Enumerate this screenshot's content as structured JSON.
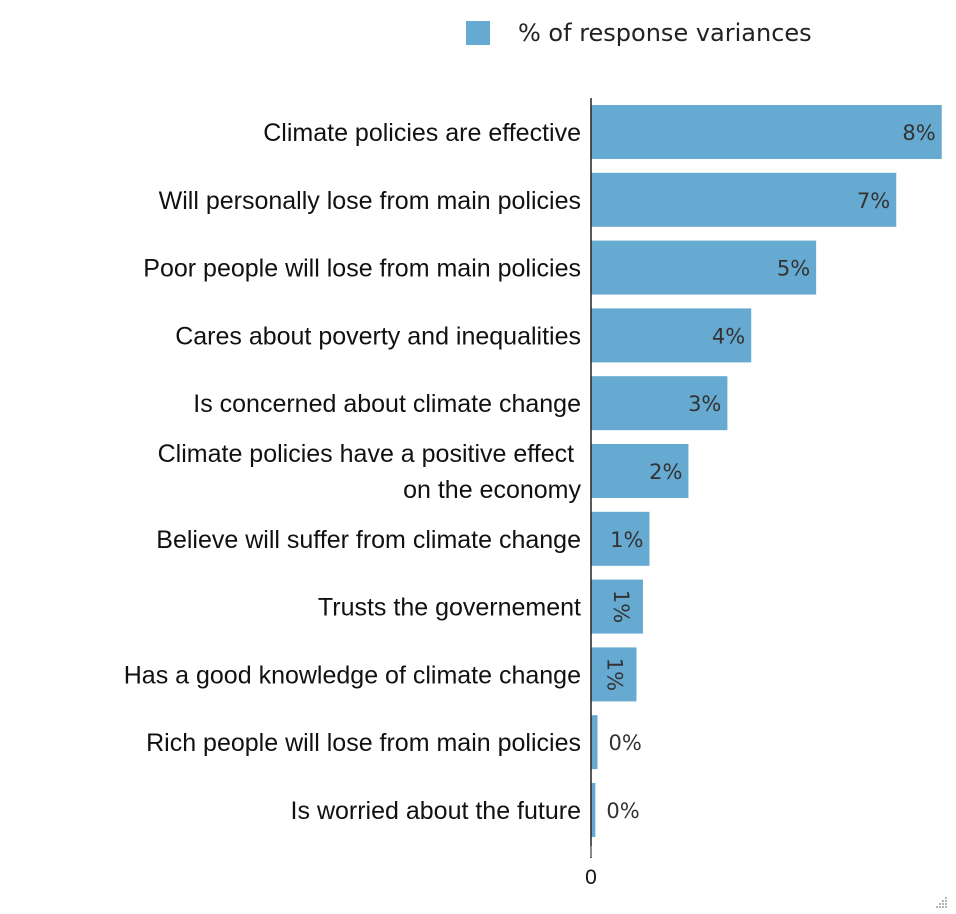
{
  "legend": {
    "label": "% of response variances",
    "color": "#66a9d1"
  },
  "chart_data": {
    "type": "bar",
    "orientation": "horizontal",
    "title": "",
    "xlabel": "",
    "ylabel": "",
    "xlim": [
      0,
      8.1
    ],
    "x_ticks": [
      "0"
    ],
    "bar_color": "#66a9d1",
    "categories": [
      [
        "Climate policies are effective"
      ],
      [
        "Will personally lose from main policies"
      ],
      [
        "Poor people will lose from main policies"
      ],
      [
        "Cares about poverty and inequalities"
      ],
      [
        "Is concerned about climate change"
      ],
      [
        "Climate policies have a positive effect ",
        "on the economy"
      ],
      [
        "Believe will suffer from climate change"
      ],
      [
        "Trusts the governement"
      ],
      [
        "Has a good knowledge of climate change"
      ],
      [
        "Rich people will lose from main policies"
      ],
      [
        "Is worried about the future"
      ]
    ],
    "values": [
      8.1,
      7.05,
      5.2,
      3.7,
      3.15,
      2.25,
      1.35,
      1.2,
      1.05,
      0.15,
      0.1
    ],
    "data_labels": [
      "8%",
      "7%",
      "5%",
      "4%",
      "3%",
      "2%",
      "1%",
      "1%",
      "1%",
      "0%",
      "0%"
    ],
    "label_rotated": [
      false,
      false,
      false,
      false,
      false,
      false,
      false,
      true,
      true,
      false,
      false
    ],
    "label_outside": [
      false,
      false,
      false,
      false,
      false,
      false,
      false,
      false,
      false,
      true,
      true
    ]
  }
}
